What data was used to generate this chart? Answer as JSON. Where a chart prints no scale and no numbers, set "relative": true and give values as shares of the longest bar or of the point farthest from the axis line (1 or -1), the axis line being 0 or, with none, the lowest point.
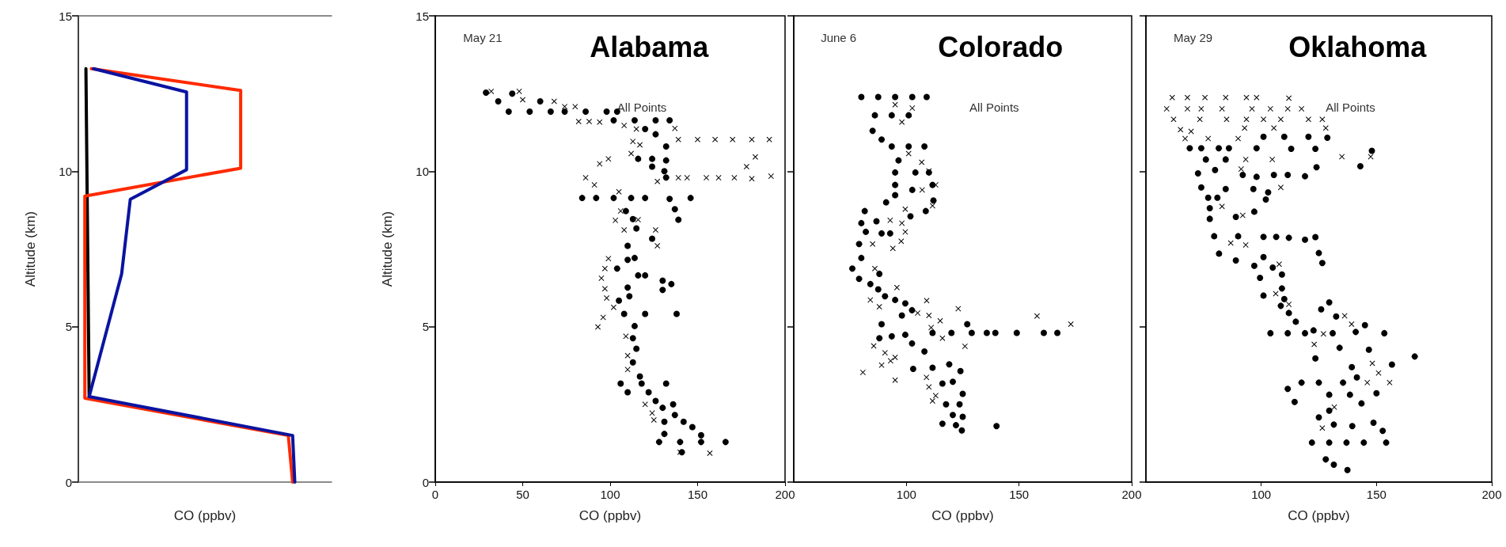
{
  "chart_data": [
    {
      "type": "line",
      "orientation": "horizontal",
      "ylabel": "Altitude (km)",
      "xlabel": "CO (ppbv)",
      "relative": true,
      "marker": "none",
      "tick_labels": "y",
      "ylim": [
        0,
        15
      ],
      "yticks": [
        0,
        5,
        10,
        15
      ],
      "series": [
        {
          "color": "#000000",
          "values": [
            0.035,
            0.05
          ],
          "x": [
            13.3,
            2.7
          ]
        },
        {
          "color": "#ff2a00",
          "values": [
            0.99,
            0.97,
            0.03,
            0.03,
            0.75,
            0.75,
            0.06
          ],
          "x": [
            0,
            1.5,
            2.7,
            9.2,
            10.1,
            12.6,
            13.3
          ]
        },
        {
          "color": "#0a14a0",
          "values": [
            1,
            0.99,
            0.05,
            0.2,
            0.24,
            0.5,
            0.5,
            0.07
          ],
          "x": [
            0,
            1.5,
            2.75,
            6.7,
            9.1,
            10.05,
            12.55,
            13.3
          ]
        }
      ]
    },
    {
      "type": "scatter",
      "title": "Alabama",
      "annotations": [
        "May 21",
        "All Points"
      ],
      "xlabel": "CO (ppbv)",
      "ylabel": "Altitude (km)",
      "xlim": [
        0,
        200
      ],
      "xticks": [
        0,
        50,
        100,
        150,
        200
      ],
      "ylim": [
        0,
        15
      ],
      "yticks": [
        0,
        5,
        10,
        15
      ],
      "series": [
        {
          "color": "#000000",
          "marker": "circle",
          "x": [
            29,
            36,
            42,
            44,
            54,
            60,
            66,
            74,
            86,
            98,
            104,
            102,
            114,
            126,
            134,
            120,
            126,
            132,
            116,
            124,
            132,
            124,
            131,
            132,
            84,
            92,
            102,
            112,
            120,
            134,
            146,
            109,
            137,
            139,
            113,
            115,
            124,
            110,
            114,
            110,
            104,
            116,
            120,
            130,
            135,
            130,
            110,
            105,
            111,
            108,
            120,
            138,
            114,
            113,
            115,
            113,
            117,
            106,
            118,
            132,
            110,
            122,
            126,
            130,
            136,
            137,
            142,
            147,
            152,
            131,
            131,
            128,
            140,
            152,
            166,
            141
          ],
          "values": [
            12.53,
            12.25,
            11.92,
            12.5,
            11.92,
            12.25,
            11.92,
            11.92,
            11.92,
            11.92,
            11.92,
            11.64,
            11.64,
            11.64,
            11.64,
            11.36,
            11.19,
            10.8,
            10.4,
            10.4,
            10.35,
            10.15,
            10.0,
            9.8,
            9.14,
            9.14,
            9.14,
            9.14,
            9.14,
            9.11,
            9.14,
            8.72,
            8.78,
            8.44,
            8.46,
            8.16,
            7.83,
            7.6,
            7.21,
            7.15,
            6.87,
            6.65,
            6.65,
            6.48,
            6.37,
            6.18,
            6.26,
            5.84,
            5.98,
            5.41,
            5.41,
            5.41,
            5.02,
            4.63,
            4.29,
            3.85,
            3.4,
            3.17,
            3.17,
            3.17,
            2.89,
            2.89,
            2.61,
            2.39,
            2.5,
            2.16,
            1.94,
            1.77,
            1.51,
            1.94,
            1.55,
            1.29,
            1.29,
            1.29,
            1.29,
            0.96
          ]
        },
        {
          "color": "#000000",
          "marker": "cross",
          "x": [
            32,
            48,
            50,
            68,
            74,
            80,
            82,
            88,
            94,
            108,
            115,
            137,
            113,
            139,
            150,
            160,
            170,
            181,
            191,
            112,
            117,
            183,
            178,
            99,
            94,
            86,
            91,
            139,
            144,
            155,
            162,
            171,
            181,
            192,
            127,
            105,
            106,
            103,
            116,
            126,
            108,
            127,
            99,
            97,
            95,
            97,
            98,
            102,
            96,
            93,
            109,
            110,
            110,
            120,
            124,
            125,
            140,
            157
          ],
          "values": [
            12.57,
            12.57,
            12.3,
            12.25,
            12.08,
            12.08,
            11.6,
            11.6,
            11.58,
            11.47,
            11.36,
            11.38,
            10.96,
            11.02,
            11.02,
            11.02,
            11.02,
            11.02,
            11.02,
            10.57,
            10.85,
            10.46,
            10.15,
            10.4,
            10.24,
            9.79,
            9.56,
            9.79,
            9.79,
            9.79,
            9.79,
            9.79,
            9.76,
            9.84,
            9.67,
            9.34,
            8.72,
            8.42,
            8.44,
            8.11,
            8.11,
            7.6,
            7.19,
            6.87,
            6.56,
            6.22,
            5.92,
            5.62,
            5.3,
            4.99,
            4.69,
            4.07,
            3.62,
            2.5,
            2.22,
            2.0,
            0.96,
            0.93
          ]
        }
      ]
    },
    {
      "type": "scatter",
      "title": "Colorado",
      "annotations": [
        "June 6",
        "All Points"
      ],
      "xlabel": "CO (ppbv)",
      "xlim": [
        50,
        200
      ],
      "xticks": [
        100,
        150,
        200
      ],
      "ylim": [
        0,
        15
      ],
      "yticks": [
        0,
        5,
        10,
        15
      ],
      "tick_labels": "x",
      "series": [
        {
          "color": "#000000",
          "marker": "circle",
          "x": [
            80,
            87.5,
            95,
            102.6,
            109,
            86,
            93.5,
            101,
            85,
            89,
            93.5,
            101,
            108,
            96.5,
            95,
            104,
            110,
            95,
            102.6,
            111.6,
            112,
            91,
            95,
            108.6,
            101.8,
            81.5,
            80,
            86.7,
            89,
            92.8,
            82,
            79,
            80,
            76,
            79,
            84,
            88,
            87.5,
            90.5,
            95,
            99.5,
            98,
            102.5,
            89,
            88,
            93.5,
            99.5,
            102.5,
            111.6,
            120,
            127,
            129,
            135.7,
            139.5,
            149,
            161,
            167,
            108,
            103,
            111.6,
            119,
            124,
            116,
            120.6,
            125,
            117.6,
            123.6,
            120.6,
            125,
            116,
            122,
            124.6,
            140
          ],
          "values": [
            12.39,
            12.39,
            12.39,
            12.39,
            12.39,
            11.8,
            11.8,
            11.8,
            11.3,
            11.02,
            10.8,
            10.8,
            10.8,
            10.35,
            9.96,
            9.96,
            9.96,
            9.56,
            9.4,
            9.56,
            9.06,
            9.0,
            9.23,
            8.72,
            8.55,
            8.72,
            8.33,
            8.39,
            8.0,
            8.0,
            8.05,
            7.66,
            7.21,
            6.87,
            6.54,
            6.37,
            6.7,
            6.2,
            5.98,
            5.86,
            5.75,
            5.36,
            5.53,
            5.08,
            4.63,
            4.69,
            4.74,
            4.46,
            4.8,
            4.8,
            5.08,
            4.8,
            4.8,
            4.8,
            4.8,
            4.8,
            4.8,
            4.2,
            3.64,
            3.68,
            3.79,
            3.57,
            3.17,
            3.23,
            2.84,
            2.5,
            2.5,
            2.16,
            2.1,
            1.88,
            1.83,
            1.66,
            1.8
          ]
        },
        {
          "color": "#000000",
          "marker": "cross",
          "x": [
            95,
            102.6,
            98,
            101,
            106.8,
            110,
            113,
            107,
            111.6,
            99.5,
            92.8,
            98,
            99.5,
            97.7,
            94,
            85,
            86,
            95.8,
            84,
            88,
            109,
            123,
            110,
            105,
            115,
            111,
            158,
            173,
            116,
            126,
            85.5,
            90.5,
            95,
            89,
            93,
            80.7,
            95,
            108.9,
            110,
            111.6,
            113
          ],
          "values": [
            12.14,
            12.03,
            11.58,
            10.57,
            10.29,
            10.01,
            9.56,
            9.4,
            8.89,
            8.78,
            8.42,
            8.33,
            8.05,
            7.75,
            7.52,
            7.66,
            6.87,
            6.26,
            5.86,
            5.64,
            5.84,
            5.58,
            5.36,
            5.44,
            5.19,
            4.97,
            5.34,
            5.08,
            4.63,
            4.37,
            4.38,
            4.16,
            4.01,
            3.76,
            3.9,
            3.53,
            3.28,
            3.37,
            3.06,
            2.61,
            2.78
          ]
        }
      ]
    },
    {
      "type": "scatter",
      "title": "Oklahoma",
      "annotations": [
        "May 29",
        "All Points"
      ],
      "xlabel": "CO (ppbv)",
      "xlim": [
        50,
        200
      ],
      "xticks": [
        100,
        150,
        200
      ],
      "ylim": [
        0,
        15
      ],
      "yticks": [
        0,
        5,
        10,
        15
      ],
      "tick_labels": "x",
      "series": [
        {
          "color": "#000000",
          "marker": "circle",
          "x": [
            69,
            74,
            81.6,
            86,
            98,
            76,
            84.6,
            72.6,
            80,
            92,
            98,
            105.5,
            111.5,
            119,
            74,
            84.6,
            96.6,
            103,
            101,
            110,
            120.5,
            128.7,
            113,
            123.5,
            124,
            143,
            148,
            77,
            81,
            102,
            77.7,
            77.7,
            89,
            97,
            79.6,
            90,
            101,
            106.5,
            112,
            119,
            123.5,
            81.7,
            89,
            97,
            101,
            105,
            125,
            126.5,
            99.5,
            101,
            109,
            109,
            110,
            108.5,
            112,
            115,
            126,
            129.5,
            132.5,
            104,
            111.5,
            119,
            122.7,
            131,
            141,
            145,
            153.4,
            166.6,
            156.7,
            146.7,
            134,
            139.3,
            123.5,
            117.5,
            125,
            135.5,
            141.5,
            111.5,
            114.5,
            129.5,
            138.5,
            150,
            129.5,
            143.5,
            125,
            131.5,
            139.5,
            148.7,
            152.7,
            122,
            129.5,
            137,
            144.5,
            154.2,
            128,
            131.5,
            137.4
          ],
          "values": [
            10.74,
            10.74,
            10.74,
            10.74,
            10.74,
            10.38,
            10.38,
            9.93,
            10.04,
            9.88,
            9.82,
            9.88,
            9.88,
            9.84,
            9.48,
            9.43,
            9.43,
            9.32,
            11.11,
            11.11,
            11.11,
            11.08,
            10.72,
            10.72,
            10.13,
            10.16,
            10.66,
            9.15,
            9.15,
            9.09,
            8.81,
            8.47,
            8.53,
            8.7,
            7.91,
            7.91,
            7.89,
            7.89,
            7.86,
            7.8,
            7.88,
            7.35,
            7.13,
            6.96,
            7.24,
            6.9,
            7.37,
            7.05,
            6.57,
            6.0,
            6.68,
            6.23,
            5.89,
            5.67,
            5.44,
            5.16,
            5.56,
            5.78,
            5.33,
            4.79,
            4.79,
            4.79,
            4.88,
            4.79,
            4.83,
            5.05,
            4.79,
            4.04,
            3.78,
            4.26,
            4.32,
            3.7,
            3.98,
            3.2,
            3.2,
            3.2,
            3.37,
            3.0,
            2.58,
            2.81,
            2.81,
            2.86,
            2.3,
            2.53,
            2.08,
            1.85,
            1.8,
            1.91,
            1.65,
            1.27,
            1.27,
            1.27,
            1.27,
            1.27,
            0.73,
            0.56,
            0.39
          ]
        },
        {
          "color": "#000000",
          "marker": "cross",
          "x": [
            61.4,
            68,
            75.6,
            84.6,
            93.6,
            98,
            112,
            59,
            68,
            74,
            83,
            96,
            104,
            111.5,
            117.5,
            62,
            73.4,
            85,
            93.6,
            101,
            108.5,
            120.5,
            126.5,
            65,
            69.6,
            92.8,
            105.5,
            128,
            67,
            77,
            90,
            93.3,
            104.8,
            135,
            147.5,
            91.3,
            108.5,
            83,
            92,
            86.8,
            93.3,
            107.8,
            106.3,
            112,
            136.2,
            139.2,
            127,
            123,
            148.2,
            150.9,
            155.7,
            146,
            131.7,
            126.5
          ],
          "values": [
            12.37,
            12.37,
            12.37,
            12.37,
            12.37,
            12.37,
            12.35,
            12.01,
            12.01,
            12.01,
            12.01,
            12.01,
            12.01,
            12.01,
            12.01,
            11.67,
            11.67,
            11.67,
            11.67,
            11.67,
            11.67,
            11.67,
            11.67,
            11.34,
            11.28,
            11.39,
            11.39,
            11.39,
            11.05,
            11.05,
            11.05,
            10.38,
            10.38,
            10.47,
            10.47,
            10.07,
            9.48,
            8.87,
            8.58,
            7.69,
            7.63,
            7.01,
            6.06,
            5.72,
            5.35,
            5.08,
            4.77,
            4.43,
            3.82,
            3.51,
            3.2,
            3.2,
            2.41,
            1.74
          ]
        }
      ]
    }
  ]
}
